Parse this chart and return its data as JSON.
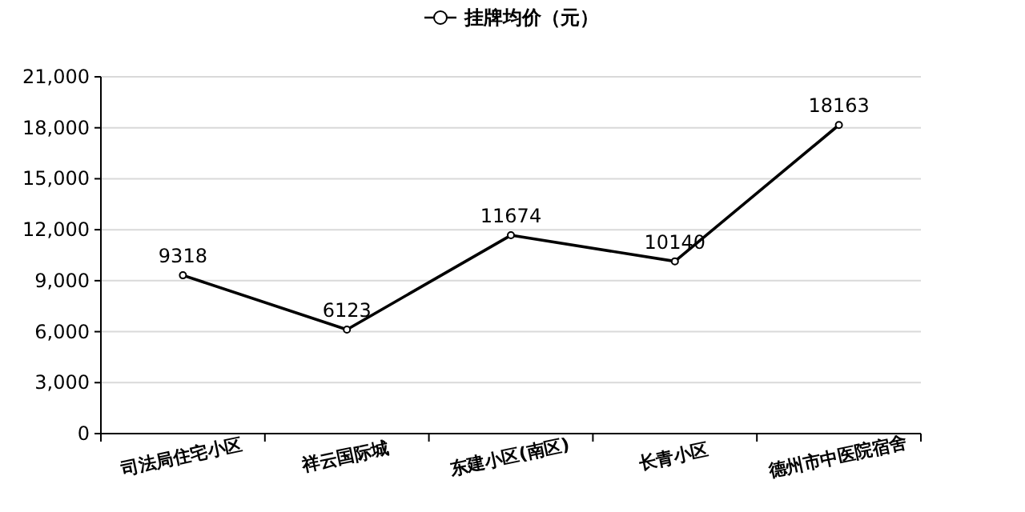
{
  "chart_data": {
    "type": "line",
    "categories": [
      "司法局住宅小区",
      "祥云国际城",
      "东建小区(南区)",
      "长青小区",
      "德州市中医院宿舍"
    ],
    "series": [
      {
        "name": "挂牌均价（元）",
        "color": "#000000",
        "values": [
          9318,
          6123,
          11674,
          10140,
          18163
        ]
      }
    ],
    "ylim": [
      0,
      21000
    ],
    "yticks": [
      {
        "value": 0,
        "label": "0"
      },
      {
        "value": 3000,
        "label": "3,000"
      },
      {
        "value": 6000,
        "label": "6,000"
      },
      {
        "value": 9000,
        "label": "9,000"
      },
      {
        "value": 12000,
        "label": "12,000"
      },
      {
        "value": 15000,
        "label": "15,000"
      },
      {
        "value": 18000,
        "label": "18,000"
      },
      {
        "value": 21000,
        "label": "21,000"
      }
    ],
    "grid": "y",
    "legend": "top",
    "marker": "circle",
    "line_style": "solid",
    "data_labels": true
  }
}
